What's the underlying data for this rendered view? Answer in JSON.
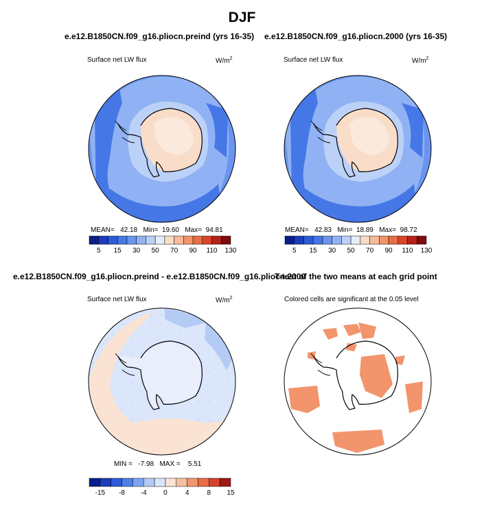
{
  "title": "DJF",
  "panels": [
    {
      "run_title": "e.e12.B1850CN.f09_g16.pliocn.preind (yrs 16-35)",
      "variable": "Surface net LW flux",
      "units": "W/m",
      "units_sup": "2",
      "stats": {
        "mean_label": "MEAN=",
        "mean": "42.18",
        "min_label": "Min=",
        "min": "19.60",
        "max_label": "Max=",
        "max": "94.81"
      }
    },
    {
      "run_title": "e.e12.B1850CN.f09_g16.pliocn.2000 (yrs 16-35)",
      "variable": "Surface net LW flux",
      "units": "W/m",
      "units_sup": "2",
      "stats": {
        "mean_label": "MEAN=",
        "mean": "42.83",
        "min_label": "Min=",
        "min": "18.89",
        "max_label": "Max=",
        "max": "98.72"
      }
    },
    {
      "run_title": "e.e12.B1850CN.f09_g16.pliocn.preind - e.e12.B1850CN.f09_g16.pliocn.2000",
      "variable": "Surface net LW flux",
      "units": "W/m",
      "units_sup": "2",
      "stats": {
        "min_label": "MIN =",
        "min": "-7.98",
        "max_label": "MAX =",
        "max": "5.51"
      }
    },
    {
      "run_title": "T-test of the two means at each grid point",
      "variable": "Colored cells are significant at the 0.05 level"
    }
  ],
  "colorbars": {
    "absolute": {
      "labels": [
        "5",
        "15",
        "30",
        "50",
        "70",
        "90",
        "110",
        "130"
      ],
      "colors": [
        "#0b1f8a",
        "#1b3dbb",
        "#2e5bd8",
        "#4577e6",
        "#6a94ef",
        "#90b2f4",
        "#bcd1f7",
        "#e4eefb",
        "#f9ddc9",
        "#f6bb9a",
        "#f2946c",
        "#ea6c45",
        "#d9442b",
        "#b42317",
        "#7f0c0d"
      ]
    },
    "difference": {
      "labels": [
        "-15",
        "-8",
        "-4",
        "0",
        "4",
        "8",
        "15"
      ],
      "colors": [
        "#0b1f8a",
        "#1b3dbb",
        "#2e5bd8",
        "#4f7fe8",
        "#7ea3f1",
        "#b4cbf6",
        "#dbe6fa",
        "#fbe3d3",
        "#f6bf9f",
        "#f29670",
        "#e86c46",
        "#d6432b",
        "#9e1a12"
      ]
    }
  },
  "chart_data": [
    {
      "type": "heatmap",
      "projection": "south-polar-stereographic",
      "title": "e.e12.B1850CN.f09_g16.pliocn.preind (yrs 16-35)",
      "variable": "Surface net LW flux",
      "units": "W/m2",
      "mean": 42.18,
      "min": 19.6,
      "max": 94.81,
      "levels": [
        5,
        10,
        15,
        20,
        30,
        40,
        50,
        60,
        70,
        80,
        90,
        100,
        110,
        120,
        130
      ]
    },
    {
      "type": "heatmap",
      "projection": "south-polar-stereographic",
      "title": "e.e12.B1850CN.f09_g16.pliocn.2000 (yrs 16-35)",
      "variable": "Surface net LW flux",
      "units": "W/m2",
      "mean": 42.83,
      "min": 18.89,
      "max": 98.72,
      "levels": [
        5,
        10,
        15,
        20,
        30,
        40,
        50,
        60,
        70,
        80,
        90,
        100,
        110,
        120,
        130
      ]
    },
    {
      "type": "heatmap",
      "projection": "south-polar-stereographic",
      "title": "e.e12.B1850CN.f09_g16.pliocn.preind - e.e12.B1850CN.f09_g16.pliocn.2000",
      "variable": "Surface net LW flux",
      "units": "W/m2",
      "min": -7.98,
      "max": 5.51,
      "levels": [
        -15,
        -12,
        -8,
        -6,
        -4,
        -2,
        0,
        2,
        4,
        6,
        8,
        12,
        15
      ]
    },
    {
      "type": "heatmap",
      "projection": "south-polar-stereographic",
      "title": "T-test of the two means at each grid point",
      "note": "Colored cells are significant at the 0.05 level",
      "alpha": 0.05
    }
  ]
}
